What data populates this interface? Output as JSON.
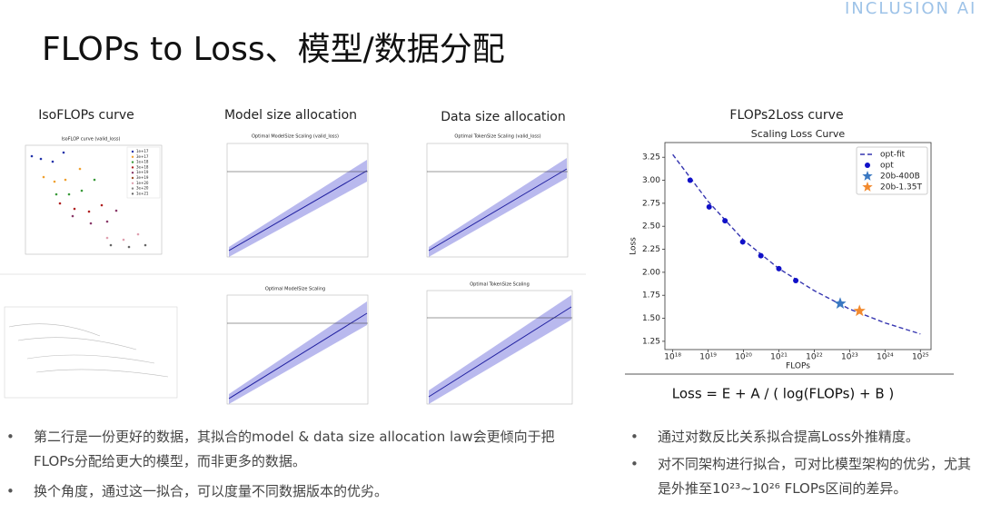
{
  "header": {
    "logo": "INCLUSION AI",
    "title": "FLOPs to Loss、模型/数据分配"
  },
  "sections": [
    "IsoFLOPs curve",
    "Model size allocation",
    "Data size allocation",
    "FLOPs2Loss curve"
  ],
  "thumbnails": [
    {
      "title": "IsoFLOP curve (valid_loss)",
      "legend": [
        "1e+17",
        "3e+17",
        "1e+18",
        "3e+18",
        "1e+19",
        "3e+19",
        "1e+20",
        "3e+20",
        "1e+21"
      ]
    },
    {
      "title": "Optimal ModelSize Scaling (valid_loss)"
    },
    {
      "title": "Optimal TokenSize Scaling (valid_loss)"
    },
    {
      "title": "Optimal ModelSize Scaling"
    },
    {
      "title": "Optimal TokenSize Scaling"
    }
  ],
  "chart_data": {
    "type": "line",
    "title": "Scaling Loss Curve",
    "x_label": "FLOPs",
    "y_label": "Loss",
    "x_scale": "log",
    "xlim": [
      6e+17,
      2e+25
    ],
    "xticks": [
      {
        "value": 1e+18,
        "label": "10¹⁸"
      },
      {
        "value": 1e+19,
        "label": "10¹⁹"
      },
      {
        "value": 1e+20,
        "label": "10²⁰"
      },
      {
        "value": 1e+21,
        "label": "10²¹"
      },
      {
        "value": 1e+22,
        "label": "10²²"
      },
      {
        "value": 1e+23,
        "label": "10²³"
      },
      {
        "value": 1e+24,
        "label": "10²⁴"
      },
      {
        "value": 1e+25,
        "label": "10²⁵"
      }
    ],
    "ylim": [
      1.16,
      3.41
    ],
    "yticks": [
      1.25,
      {
        "value": 1.5,
        "label": "1.50"
      },
      1.75,
      {
        "value": 2,
        "label": "2.00"
      },
      2.25,
      {
        "value": 2.5,
        "label": "2.50"
      },
      2.75,
      {
        "value": 3,
        "label": "3.00"
      },
      3.25
    ],
    "legend_position": "upper right",
    "series": [
      {
        "name": "opt-fit",
        "color": "#3535b0",
        "style": "dashed",
        "x": [
          1e+18,
          1e+19,
          1e+20,
          1e+21,
          1e+22,
          1e+23,
          1e+24,
          1e+25
        ],
        "values": [
          3.28,
          2.77,
          2.35,
          2.04,
          1.8,
          1.6,
          1.45,
          1.33
        ]
      },
      {
        "name": "opt",
        "color": "#1010c8",
        "style": "dot",
        "x": [
          3.1e+18,
          1.07e+19,
          3e+19,
          9.5e+19,
          3.1e+20,
          1e+21,
          3e+21
        ],
        "values": [
          3.0,
          2.71,
          2.56,
          2.33,
          2.18,
          2.04,
          1.91
        ]
      },
      {
        "name": "20b-400B",
        "color": "#3a78c2",
        "style": "star",
        "x": [
          5.4e+22
        ],
        "values": [
          1.66
        ]
      },
      {
        "name": "20b-1.35T",
        "color": "#f28a2e",
        "style": "star",
        "x": [
          1.9e+23
        ],
        "values": [
          1.58
        ]
      }
    ],
    "formula": "Loss = E + A / ( log(FLOPs) + B )"
  },
  "bullets_left": [
    "第二行是一份更好的数据，其拟合的model & data size allocation law会更倾向于把FLOPs分配给更大的模型，而非更多的数据。",
    "换个角度，通过这一拟合，可以度量不同数据版本的优劣。"
  ],
  "bullets_right": [
    "通过对数反比关系拟合提高Loss外推精度。",
    "对不同架构进行拟合，可对比模型架构的优劣，尤其是外推至10²³~10²⁶ FLOPs区间的差异。"
  ]
}
